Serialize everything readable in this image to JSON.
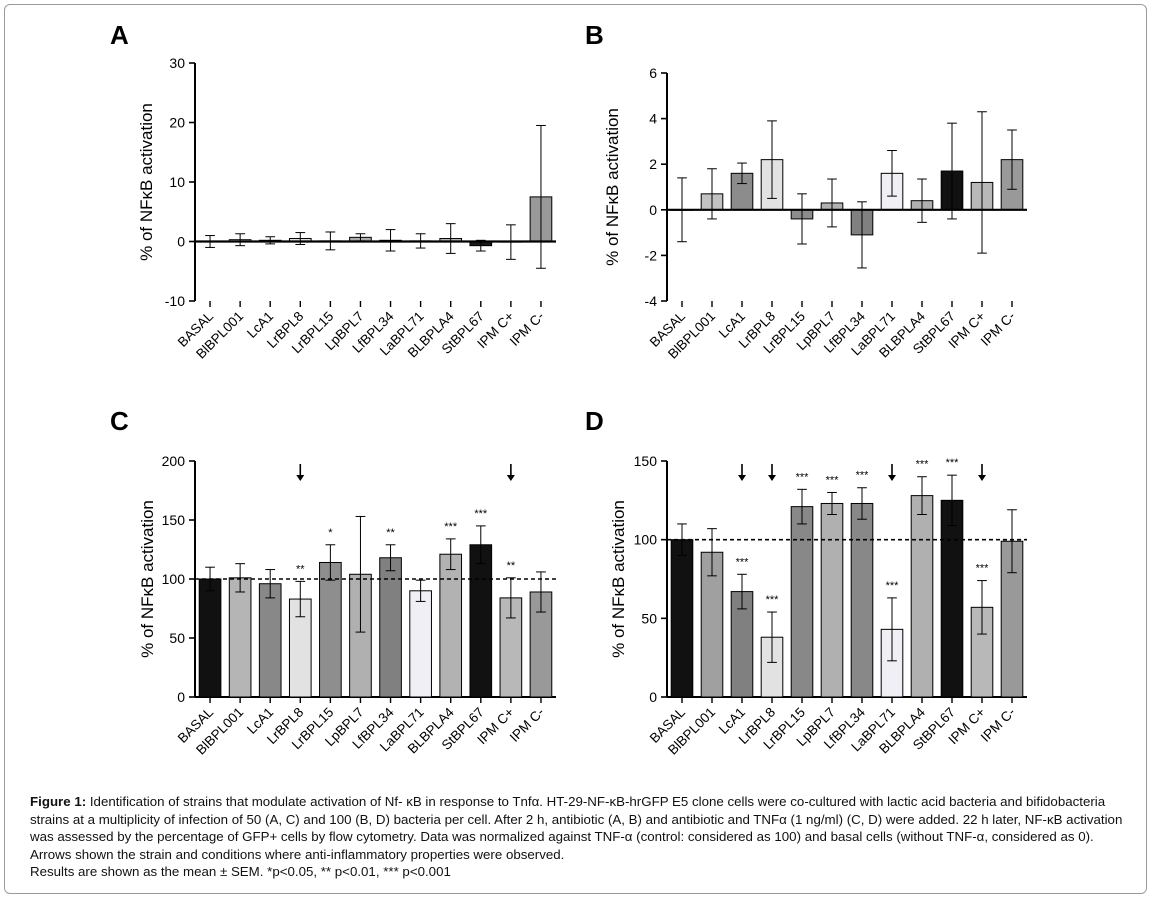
{
  "chart_data": [
    {
      "type": "bar",
      "panel": "A",
      "categories": [
        "BASAL",
        "BlBPL001",
        "LcA1",
        "LrBPL8",
        "LrBPL15",
        "LpBPL7",
        "LfBPL34",
        "LaBPL71",
        "BLBPLA4",
        "StBPL67",
        "IPM C+",
        "IPM C-"
      ],
      "values": [
        0,
        0.3,
        0.2,
        0.5,
        0.1,
        0.7,
        0.2,
        0.1,
        0.5,
        -0.7,
        -0.1,
        7.5
      ],
      "errors": [
        1.0,
        1.0,
        0.6,
        1.0,
        1.5,
        0.6,
        1.8,
        1.2,
        2.5,
        0.9,
        2.9,
        12.0
      ],
      "colors": [
        "#ffffff",
        "#ffffff",
        "#ffffff",
        "#e4e4e4",
        "#ffffff",
        "#aaaaaa",
        "#ffffff",
        "#ffffff",
        "#bbbbbb",
        "#1a1a1a",
        "#ffffff",
        "#999999"
      ],
      "significance": [
        "",
        "",
        "",
        "",
        "",
        "",
        "",
        "",
        "",
        "",
        "",
        ""
      ],
      "arrows": [],
      "xlabel": "",
      "ylabel": "% of NFκB activation",
      "ylim": [
        -10,
        30
      ],
      "yticks": [
        "-10",
        "0",
        "10",
        "20",
        "30"
      ],
      "baseline": 0
    },
    {
      "type": "bar",
      "panel": "B",
      "categories": [
        "BASAL",
        "BlBPL001",
        "LcA1",
        "LrBPL8",
        "LrBPL15",
        "LpBPL7",
        "LfBPL34",
        "LaBPL71",
        "BLBPLA4",
        "StBPL67",
        "IPM C+",
        "IPM C-"
      ],
      "values": [
        0,
        0.7,
        1.6,
        2.2,
        -0.4,
        0.3,
        -1.1,
        1.6,
        0.4,
        1.7,
        1.2,
        2.2
      ],
      "errors": [
        1.4,
        1.1,
        0.45,
        1.7,
        1.1,
        1.05,
        1.45,
        1.0,
        0.95,
        2.1,
        3.1,
        1.3
      ],
      "colors": [
        "#ffffff",
        "#c2c2c2",
        "#8c8c8c",
        "#e2e2e2",
        "#8c8c8c",
        "#b2b2b2",
        "#808080",
        "#f0eff6",
        "#b0b0b0",
        "#111111",
        "#b8b8b8",
        "#999999"
      ],
      "significance": [
        "",
        "",
        "",
        "",
        "",
        "",
        "",
        "",
        "",
        "",
        "",
        ""
      ],
      "arrows": [],
      "xlabel": "",
      "ylabel": "% of NFκB activation",
      "ylim": [
        -4,
        6
      ],
      "yticks": [
        "-4",
        "-2",
        "0",
        "2",
        "4",
        "6"
      ],
      "baseline": 0
    },
    {
      "type": "bar",
      "panel": "C",
      "categories": [
        "BASAL",
        "BlBPL001",
        "LcA1",
        "LrBPL8",
        "LrBPL15",
        "LpBPL7",
        "LfBPL34",
        "LaBPL71",
        "BLBPLA4",
        "StBPL67",
        "IPM C+",
        "IPM C-"
      ],
      "values": [
        100,
        101,
        96,
        83,
        114,
        104,
        118,
        90,
        121,
        129,
        84,
        89
      ],
      "errors": [
        10,
        12,
        12,
        15,
        15,
        49,
        11,
        9,
        13,
        16,
        17,
        17
      ],
      "colors": [
        "#111111",
        "#b5b5b5",
        "#888888",
        "#e2e2e2",
        "#8e8e8e",
        "#b0b0b0",
        "#808080",
        "#f0eff6",
        "#b2b2b2",
        "#111111",
        "#b8b8b8",
        "#999999"
      ],
      "significance": [
        "",
        "",
        "",
        "**",
        "*",
        "",
        "**",
        "",
        "***",
        "***",
        "**",
        ""
      ],
      "arrows": [
        false,
        false,
        false,
        true,
        false,
        false,
        false,
        false,
        false,
        false,
        true,
        false
      ],
      "xlabel": "",
      "ylabel": "% of NFκB activation",
      "ylim": [
        0,
        200
      ],
      "yticks": [
        "0",
        "50",
        "100",
        "150",
        "200"
      ],
      "baseline": 100
    },
    {
      "type": "bar",
      "panel": "D",
      "categories": [
        "BASAL",
        "BlBPL001",
        "LcA1",
        "LrBPL8",
        "LrBPL15",
        "LpBPL7",
        "LfBPL34",
        "LaBPL71",
        "BLBPLA4",
        "StBPL67",
        "IPM C+",
        "IPM C-"
      ],
      "values": [
        100,
        92,
        67,
        38,
        121,
        123,
        123,
        43,
        128,
        125,
        57,
        99
      ],
      "errors": [
        10,
        15,
        11,
        16,
        11,
        7,
        10,
        20,
        12,
        16,
        17,
        20
      ],
      "colors": [
        "#111111",
        "#a0a0a0",
        "#808080",
        "#e2e2e2",
        "#888888",
        "#b0b0b0",
        "#888888",
        "#f0eff6",
        "#b0b0b0",
        "#111111",
        "#b8b8b8",
        "#999999"
      ],
      "significance": [
        "",
        "",
        "***",
        "***",
        "***",
        "***",
        "***",
        "***",
        "***",
        "***",
        "***",
        ""
      ],
      "arrows": [
        false,
        false,
        true,
        true,
        false,
        false,
        false,
        true,
        false,
        false,
        true,
        false
      ],
      "xlabel": "",
      "ylabel": "% of NFκB activation",
      "ylim": [
        0,
        150
      ],
      "yticks": [
        "0",
        "50",
        "100",
        "150"
      ],
      "baseline": 100
    }
  ],
  "caption": {
    "label": "Figure 1:",
    "text": "Identification of strains that modulate activation of Nf- κB in response to Tnfα. HT-29-NF-κB-hrGFP E5 clone cells were co-cultured with lactic acid bacteria and bifidobacteria strains at a multiplicity of infection of 50 (A, C) and 100 (B, D) bacteria per cell. After 2 h, antibiotic (A, B) and antibiotic and TNFα (1 ng/ml) (C, D) were added. 22 h later, NF-κB activation was assessed by the percentage of GFP+ cells by flow cytometry. Data was normalized against TNF-α (control: considered as 100) and basal cells (without TNF-α, considered as 0). Arrows shown the strain and conditions where anti-inflammatory properties were observed.",
    "line2": "Results are shown as the mean ± SEM. *p<0.05, ** p<0.01, *** p<0.001"
  }
}
